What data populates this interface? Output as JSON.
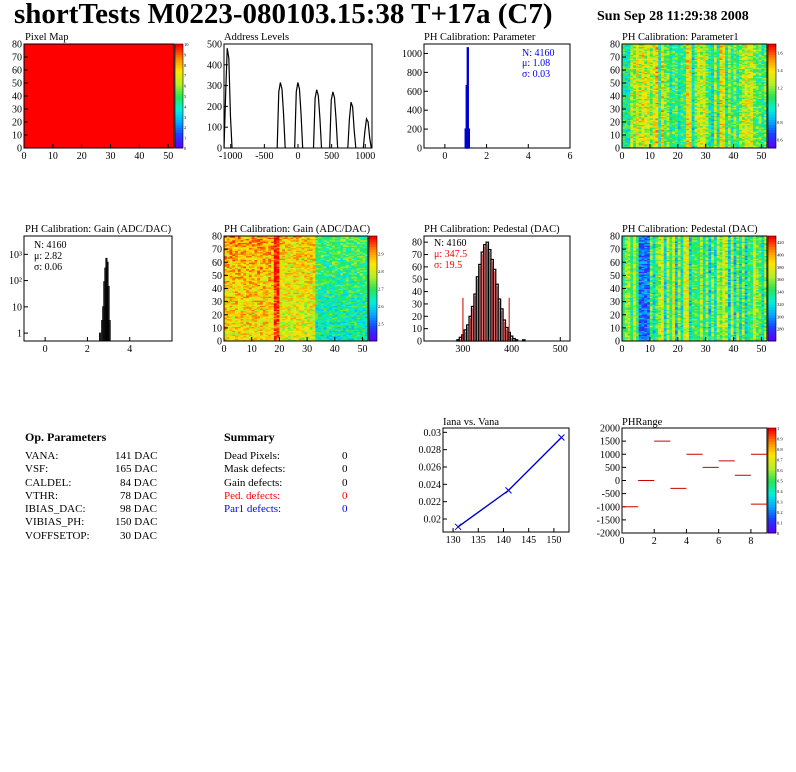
{
  "header": {
    "title": "shortTests M0223-080103.15:38 T+17a (C7)",
    "date": "Sun Sep 28 11:29:38 2008"
  },
  "chart_data": [
    {
      "id": "pixel-map",
      "type": "heatmap",
      "title": "Pixel Map",
      "x_range": [
        0,
        52
      ],
      "y_range": [
        0,
        80
      ],
      "x_ticks": [
        "0",
        "10",
        "20",
        "30",
        "40",
        "50"
      ],
      "y_ticks": [
        "0",
        "10",
        "20",
        "30",
        "40",
        "50",
        "60",
        "70",
        "80"
      ],
      "z_range": [
        0,
        10
      ],
      "z_ticks": [
        "0",
        "1",
        "2",
        "3",
        "4",
        "5",
        "6",
        "7",
        "8",
        "9",
        "10"
      ],
      "values": "all 52x80 pixels at 10 (uniform red)",
      "uniform_value": 10
    },
    {
      "id": "address-levels",
      "type": "bar",
      "title": "Address Levels",
      "x_range": [
        -1100,
        1100
      ],
      "y_range": [
        0,
        500
      ],
      "x_ticks": [
        "-1000",
        "-500",
        "0",
        "500",
        "1000"
      ],
      "y_ticks": [
        "0",
        "100",
        "200",
        "300",
        "400",
        "500"
      ],
      "peaks": [
        {
          "x": -1040,
          "y": 480,
          "base": 260
        },
        {
          "x": -250,
          "y": 315,
          "base": 270
        },
        {
          "x": 10,
          "y": 315,
          "base": 270
        },
        {
          "x": 290,
          "y": 280,
          "base": 240
        },
        {
          "x": 530,
          "y": 270,
          "base": 230
        },
        {
          "x": 800,
          "y": 220,
          "base": 140
        },
        {
          "x": 1030,
          "y": 140,
          "base": 80
        }
      ]
    },
    {
      "id": "ph-calibration-parameter",
      "type": "bar",
      "title": "PH Calibration: Parameter",
      "x_range": [
        -1,
        6
      ],
      "y_range": [
        0,
        1100
      ],
      "x_ticks": [
        "0",
        "2",
        "4",
        "6"
      ],
      "y_ticks": [
        "0",
        "200",
        "400",
        "600",
        "800",
        "1000"
      ],
      "stats": {
        "n": "N: 4160",
        "mean": "μ: 1.08",
        "sigma": "σ: 0.03"
      },
      "bins": [
        {
          "x": 1.0,
          "y": 200
        },
        {
          "x": 1.05,
          "y": 660
        },
        {
          "x": 1.1,
          "y": 1060
        },
        {
          "x": 1.15,
          "y": 200
        }
      ]
    },
    {
      "id": "ph-calibration-parameter1",
      "type": "heatmap",
      "title": "PH Calibration: Parameter1",
      "x_range": [
        0,
        52
      ],
      "y_range": [
        0,
        80
      ],
      "x_ticks": [
        "0",
        "10",
        "20",
        "30",
        "40",
        "50"
      ],
      "y_ticks": [
        "0",
        "10",
        "20",
        "30",
        "40",
        "50",
        "60",
        "70",
        "80"
      ],
      "z_range": [
        0.5,
        1.7
      ],
      "z_ticks": [
        "0.6",
        "0.8",
        "1",
        "1.2",
        "1.4",
        "1.6"
      ]
    },
    {
      "id": "ph-calibration-gain",
      "type": "bar",
      "title": "PH Calibration: Gain (ADC/DAC)",
      "log_y": true,
      "x_range": [
        -1,
        6
      ],
      "y_range": [
        0.5,
        5000
      ],
      "x_ticks": [
        "0",
        "2",
        "4"
      ],
      "y_ticks": [
        "1",
        "10",
        "10²",
        "10³"
      ],
      "stats": {
        "n": "N: 4160",
        "mean": "μ: 2.82",
        "sigma": "σ: 0.06"
      },
      "bins": [
        {
          "x": 2.6,
          "y": 1
        },
        {
          "x": 2.7,
          "y": 3
        },
        {
          "x": 2.75,
          "y": 10
        },
        {
          "x": 2.8,
          "y": 90
        },
        {
          "x": 2.85,
          "y": 300
        },
        {
          "x": 2.9,
          "y": 700
        },
        {
          "x": 2.95,
          "y": 500
        },
        {
          "x": 3.0,
          "y": 60
        },
        {
          "x": 3.05,
          "y": 3
        }
      ]
    },
    {
      "id": "ph-calibration-gain-map",
      "type": "heatmap",
      "title": "PH Calibration: Gain (ADC/DAC)",
      "x_range": [
        0,
        52
      ],
      "y_range": [
        0,
        80
      ],
      "x_ticks": [
        "0",
        "10",
        "20",
        "30",
        "40",
        "50"
      ],
      "y_ticks": [
        "0",
        "10",
        "20",
        "30",
        "40",
        "50",
        "60",
        "70",
        "80"
      ],
      "z_range": [
        2.4,
        3.0
      ],
      "z_ticks": [
        "2.5",
        "2.6",
        "2.7",
        "2.8",
        "2.9"
      ]
    },
    {
      "id": "ph-calibration-pedestal",
      "type": "bar",
      "title": "PH Calibration: Pedestal (DAC)",
      "x_range": [
        220,
        520
      ],
      "y_range": [
        0,
        85
      ],
      "x_ticks": [
        "300",
        "400",
        "500"
      ],
      "y_ticks": [
        "0",
        "10",
        "20",
        "30",
        "40",
        "50",
        "60",
        "70",
        "80"
      ],
      "stats": {
        "n": "N: 4160",
        "mean": "μ: 347.5",
        "sigma": "σ: 19.5"
      },
      "fit_range": [
        300,
        395
      ],
      "bins": [
        {
          "x": 290,
          "y": 1
        },
        {
          "x": 295,
          "y": 3
        },
        {
          "x": 300,
          "y": 5
        },
        {
          "x": 305,
          "y": 9
        },
        {
          "x": 310,
          "y": 13
        },
        {
          "x": 315,
          "y": 20
        },
        {
          "x": 320,
          "y": 28
        },
        {
          "x": 325,
          "y": 38
        },
        {
          "x": 330,
          "y": 52
        },
        {
          "x": 335,
          "y": 62
        },
        {
          "x": 340,
          "y": 72
        },
        {
          "x": 345,
          "y": 78
        },
        {
          "x": 350,
          "y": 80
        },
        {
          "x": 355,
          "y": 74
        },
        {
          "x": 360,
          "y": 66
        },
        {
          "x": 365,
          "y": 58
        },
        {
          "x": 370,
          "y": 46
        },
        {
          "x": 375,
          "y": 34
        },
        {
          "x": 380,
          "y": 26
        },
        {
          "x": 385,
          "y": 17
        },
        {
          "x": 390,
          "y": 11
        },
        {
          "x": 395,
          "y": 7
        },
        {
          "x": 400,
          "y": 4
        },
        {
          "x": 405,
          "y": 2
        },
        {
          "x": 410,
          "y": 1
        },
        {
          "x": 425,
          "y": 1
        }
      ]
    },
    {
      "id": "ph-calibration-pedestal-map",
      "type": "heatmap",
      "title": "PH Calibration: Pedestal (DAC)",
      "x_range": [
        0,
        52
      ],
      "y_range": [
        0,
        80
      ],
      "x_ticks": [
        "0",
        "10",
        "20",
        "30",
        "40",
        "50"
      ],
      "y_ticks": [
        "0",
        "10",
        "20",
        "30",
        "40",
        "50",
        "60",
        "70",
        "80"
      ],
      "z_range": [
        260,
        430
      ],
      "z_ticks": [
        "280",
        "300",
        "320",
        "340",
        "360",
        "380",
        "400",
        "420"
      ]
    },
    {
      "id": "iana-vs-vana",
      "type": "line",
      "title": "Iana vs. Vana",
      "x_range": [
        128,
        153
      ],
      "y_range": [
        0.0185,
        0.0305
      ],
      "x_ticks": [
        "130",
        "135",
        "140",
        "145",
        "150"
      ],
      "y_ticks": [
        "0.02",
        "0.022",
        "0.024",
        "0.026",
        "0.028",
        "0.03"
      ],
      "x": [
        131,
        141,
        151.5
      ],
      "y": [
        0.0191,
        0.0233,
        0.0294
      ]
    },
    {
      "id": "ph-range",
      "type": "scatter",
      "title": "PHRange",
      "x_range": [
        0,
        9
      ],
      "y_range": [
        -2000,
        2000
      ],
      "x_ticks": [
        "0",
        "2",
        "4",
        "6",
        "8"
      ],
      "y_ticks": [
        "-2000",
        "-1500",
        "-1000",
        "-500",
        "0",
        "500",
        "1000",
        "1500",
        "2000"
      ],
      "z_ticks": [
        "0",
        "0.1",
        "0.2",
        "0.3",
        "0.4",
        "0.5",
        "0.6",
        "0.7",
        "0.8",
        "0.9",
        "1"
      ],
      "segments": [
        {
          "x0": 0,
          "x1": 1,
          "y": -1000
        },
        {
          "x0": 1,
          "x1": 2,
          "y": 0
        },
        {
          "x0": 2,
          "x1": 3,
          "y": 1500
        },
        {
          "x0": 3,
          "x1": 4,
          "y": -300
        },
        {
          "x0": 4,
          "x1": 5,
          "y": 1000
        },
        {
          "x0": 5,
          "x1": 6,
          "y": 500
        },
        {
          "x0": 6,
          "x1": 7,
          "y": 750
        },
        {
          "x0": 7,
          "x1": 8,
          "y": 200
        },
        {
          "x0": 8,
          "x1": 9,
          "y": -900
        },
        {
          "x0": 8,
          "x1": 9,
          "y": 1000
        }
      ]
    }
  ],
  "op_parameters": {
    "title": "Op. Parameters",
    "rows": [
      {
        "name": "VANA:",
        "value": "141 DAC"
      },
      {
        "name": "VSF:",
        "value": "165 DAC"
      },
      {
        "name": "CALDEL:",
        "value": "84 DAC"
      },
      {
        "name": "VTHR:",
        "value": "78 DAC"
      },
      {
        "name": "IBIAS_DAC:",
        "value": "98 DAC"
      },
      {
        "name": "VIBIAS_PH:",
        "value": "150 DAC"
      },
      {
        "name": "VOFFSETOP:",
        "value": "30 DAC"
      }
    ]
  },
  "summary": {
    "title": "Summary",
    "rows": [
      {
        "name": "Dead Pixels:",
        "value": "0",
        "color": "#000000"
      },
      {
        "name": "Mask defects:",
        "value": "0",
        "color": "#000000"
      },
      {
        "name": "Gain defects:",
        "value": "0",
        "color": "#000000"
      },
      {
        "name": "Ped. defects:",
        "value": "0",
        "color": "#ff0000"
      },
      {
        "name": "Par1 defects:",
        "value": "0",
        "color": "#0000ff"
      }
    ]
  },
  "colors": {
    "stats_blue": "#0000ff",
    "stats_red": "#ff0000",
    "line_blue": "#0000cc",
    "fit_red": "#cc0000"
  }
}
